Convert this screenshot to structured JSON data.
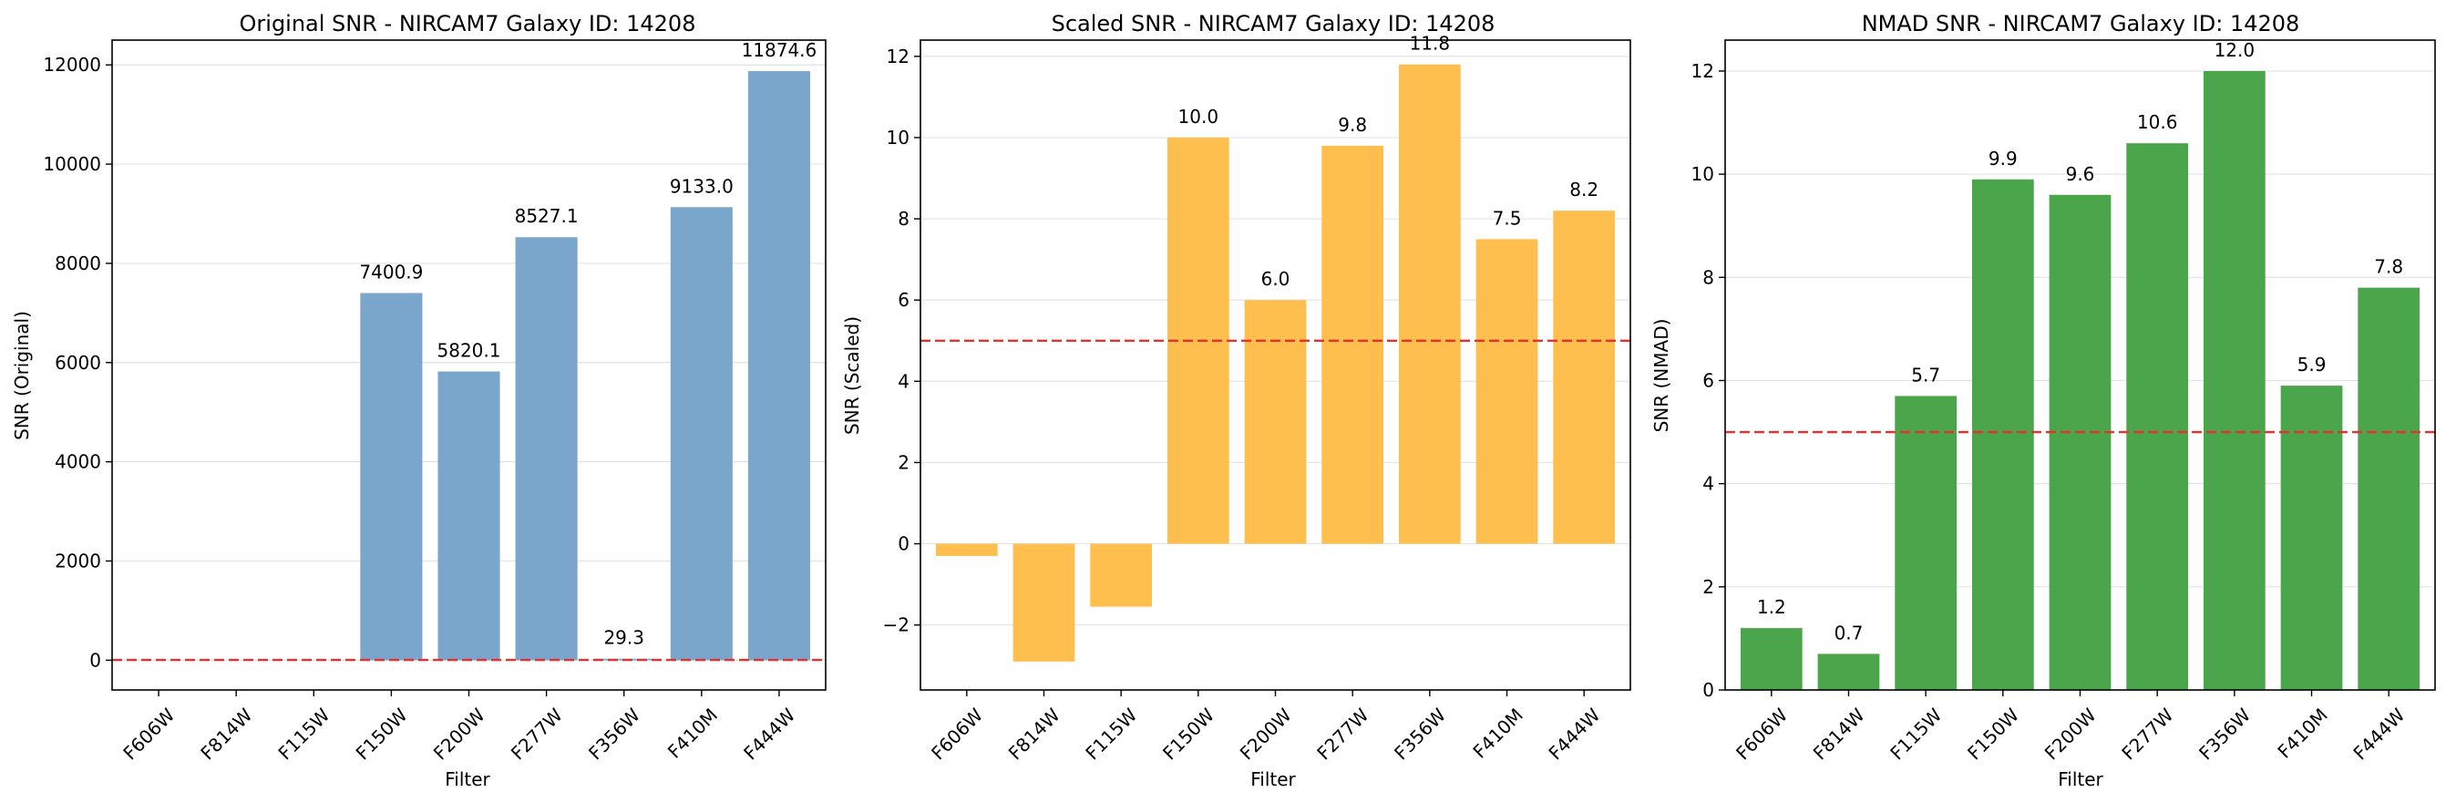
{
  "chart_data": [
    {
      "type": "bar",
      "title": "Original SNR - NIRCAM7 Galaxy ID: 14208",
      "xlabel": "Filter",
      "ylabel": "SNR (Original)",
      "categories": [
        "F606W",
        "F814W",
        "F115W",
        "F150W",
        "F200W",
        "F277W",
        "F356W",
        "F410M",
        "F444W"
      ],
      "values": [
        null,
        null,
        null,
        7400.9,
        5820.1,
        8527.1,
        29.3,
        9133.0,
        11874.6
      ],
      "value_labels": [
        "",
        "",
        "",
        "7400.9",
        "5820.1",
        "8527.1",
        "29.3",
        "9133.0",
        "11874.6"
      ],
      "ylim": [
        -600,
        12500
      ],
      "yticks": [
        0,
        2000,
        4000,
        6000,
        8000,
        10000,
        12000
      ],
      "ytick_labels": [
        "0",
        "2000",
        "4000",
        "6000",
        "8000",
        "10000",
        "12000"
      ],
      "threshold": 5,
      "bar_color": "#7ba6cb",
      "threshold_color": "#e8302e",
      "grid": "y"
    },
    {
      "type": "bar",
      "title": "Scaled SNR - NIRCAM7 Galaxy ID: 14208",
      "xlabel": "Filter",
      "ylabel": "SNR (Scaled)",
      "categories": [
        "F606W",
        "F814W",
        "F115W",
        "F150W",
        "F200W",
        "F277W",
        "F356W",
        "F410M",
        "F444W"
      ],
      "values": [
        -0.3,
        -2.9,
        -1.55,
        10.0,
        6.0,
        9.8,
        11.8,
        7.5,
        8.2
      ],
      "value_labels": [
        "",
        "",
        "",
        "10.0",
        "6.0",
        "9.8",
        "11.8",
        "7.5",
        "8.2"
      ],
      "ylim": [
        -3.6,
        12.4
      ],
      "yticks": [
        -2,
        0,
        2,
        4,
        6,
        8,
        10,
        12
      ],
      "ytick_labels": [
        "−2",
        "0",
        "2",
        "4",
        "6",
        "8",
        "10",
        "12"
      ],
      "threshold": 5,
      "bar_color": "#ffbf4e",
      "threshold_color": "#e8302e",
      "grid": "y"
    },
    {
      "type": "bar",
      "title": "NMAD SNR - NIRCAM7 Galaxy ID: 14208",
      "xlabel": "Filter",
      "ylabel": "SNR (NMAD)",
      "categories": [
        "F606W",
        "F814W",
        "F115W",
        "F150W",
        "F200W",
        "F277W",
        "F356W",
        "F410M",
        "F444W"
      ],
      "values": [
        1.2,
        0.7,
        5.7,
        9.9,
        9.6,
        10.6,
        12.0,
        5.9,
        7.8
      ],
      "value_labels": [
        "1.2",
        "0.7",
        "5.7",
        "9.9",
        "9.6",
        "10.6",
        "12.0",
        "5.9",
        "7.8"
      ],
      "ylim": [
        0,
        12.6
      ],
      "yticks": [
        0,
        2,
        4,
        6,
        8,
        10,
        12
      ],
      "ytick_labels": [
        "0",
        "2",
        "4",
        "6",
        "8",
        "10",
        "12"
      ],
      "threshold": 5,
      "bar_color": "#4ba54b",
      "threshold_color": "#e8302e",
      "grid": "y"
    }
  ]
}
